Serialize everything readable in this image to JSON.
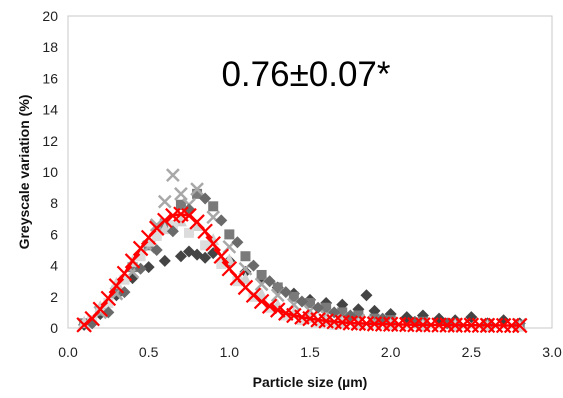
{
  "chart_data": {
    "type": "scatter",
    "title": "",
    "annotation": "0.76±0.07*",
    "xlabel": "Particle size (µm)",
    "ylabel": "Greyscale variation (%)",
    "xlim": [
      0.0,
      3.0
    ],
    "ylim": [
      0,
      20
    ],
    "xticks": [
      "0.0",
      "0.5",
      "1.0",
      "1.5",
      "2.0",
      "2.5",
      "3.0"
    ],
    "yticks": [
      "0",
      "2",
      "4",
      "6",
      "8",
      "10",
      "12",
      "14",
      "16",
      "18",
      "20"
    ],
    "grid": false,
    "legend": "none",
    "colors": {
      "mean": "#ff0000",
      "dark": "#444444",
      "medium": "#7a7a7a",
      "light": "#a8a8a8",
      "lightest": "#d2d2d2"
    },
    "series": [
      {
        "marker": "x",
        "color": "#ff0000",
        "x": [
          0.1,
          0.15,
          0.2,
          0.25,
          0.3,
          0.35,
          0.4,
          0.45,
          0.5,
          0.55,
          0.6,
          0.65,
          0.7,
          0.75,
          0.8,
          0.85,
          0.9,
          0.95,
          1.0,
          1.05,
          1.1,
          1.15,
          1.2,
          1.25,
          1.3,
          1.35,
          1.4,
          1.45,
          1.5,
          1.55,
          1.6,
          1.65,
          1.7,
          1.75,
          1.8,
          1.85,
          1.9,
          1.95,
          2.0,
          2.05,
          2.1,
          2.15,
          2.2,
          2.25,
          2.3,
          2.35,
          2.4,
          2.45,
          2.5,
          2.55,
          2.6,
          2.65,
          2.7,
          2.75,
          2.8
        ],
        "y": [
          0.2,
          0.6,
          1.2,
          1.9,
          2.7,
          3.5,
          4.3,
          5.1,
          5.8,
          6.4,
          6.9,
          7.2,
          7.3,
          7.2,
          6.8,
          6.2,
          5.4,
          4.6,
          3.8,
          3.2,
          2.6,
          2.1,
          1.7,
          1.4,
          1.15,
          0.95,
          0.8,
          0.7,
          0.6,
          0.52,
          0.45,
          0.4,
          0.36,
          0.32,
          0.3,
          0.28,
          0.26,
          0.25,
          0.24,
          0.23,
          0.22,
          0.21,
          0.2,
          0.2,
          0.19,
          0.19,
          0.18,
          0.18,
          0.18,
          0.17,
          0.17,
          0.17,
          0.16,
          0.16,
          0.16
        ]
      },
      {
        "marker": "diamond",
        "color": "#444444",
        "x": [
          0.1,
          0.2,
          0.3,
          0.4,
          0.5,
          0.6,
          0.7,
          0.75,
          0.8,
          0.85,
          0.9,
          1.0,
          1.1,
          1.2,
          1.3,
          1.4,
          1.5,
          1.6,
          1.7,
          1.8,
          1.85,
          1.9,
          2.0,
          2.1,
          2.2,
          2.3,
          2.4,
          2.5,
          2.6,
          2.7,
          2.8
        ],
        "y": [
          0.2,
          0.9,
          2.1,
          3.2,
          3.9,
          4.3,
          4.6,
          4.9,
          4.7,
          4.5,
          4.8,
          4.3,
          3.6,
          3.1,
          2.6,
          2.2,
          1.8,
          1.6,
          1.5,
          1.2,
          2.1,
          1.1,
          0.9,
          0.7,
          0.8,
          0.6,
          0.5,
          0.7,
          0.3,
          0.5,
          0.3
        ]
      },
      {
        "marker": "square",
        "color": "#7a7a7a",
        "x": [
          0.1,
          0.2,
          0.3,
          0.4,
          0.5,
          0.6,
          0.7,
          0.8,
          0.9,
          1.0,
          1.1,
          1.2,
          1.3,
          1.4,
          1.5,
          1.6,
          1.7,
          1.8,
          1.9,
          2.0,
          2.2,
          2.4,
          2.6,
          2.8
        ],
        "y": [
          0.3,
          1.1,
          2.4,
          3.9,
          5.3,
          6.7,
          7.9,
          8.6,
          7.8,
          6.0,
          4.6,
          3.4,
          2.6,
          2.0,
          1.6,
          1.3,
          1.0,
          0.8,
          0.6,
          0.5,
          0.4,
          0.3,
          0.25,
          0.2
        ]
      },
      {
        "marker": "x",
        "color": "#a8a8a8",
        "x": [
          0.1,
          0.2,
          0.3,
          0.4,
          0.5,
          0.55,
          0.6,
          0.65,
          0.7,
          0.75,
          0.8,
          0.9,
          1.0,
          1.1,
          1.2,
          1.3,
          1.4,
          1.5,
          1.6,
          1.7,
          1.8,
          1.9,
          2.0,
          2.2,
          2.4,
          2.6,
          2.8
        ],
        "y": [
          0.2,
          1.0,
          2.2,
          3.6,
          5.2,
          6.6,
          8.1,
          9.8,
          8.6,
          7.9,
          8.9,
          7.1,
          5.2,
          3.8,
          2.8,
          2.1,
          1.5,
          1.1,
          0.8,
          0.6,
          0.5,
          0.4,
          0.3,
          0.25,
          0.2,
          0.2,
          0.2
        ]
      },
      {
        "marker": "triangle",
        "color": "#d2d2d2",
        "x": [
          0.1,
          0.2,
          0.3,
          0.4,
          0.5,
          0.6,
          0.7,
          0.8,
          0.9,
          1.0,
          1.1,
          1.2,
          1.3,
          1.4,
          1.5,
          1.6,
          1.7,
          1.8,
          2.0,
          2.2,
          2.4,
          2.6,
          2.8
        ],
        "y": [
          0.4,
          1.4,
          2.9,
          4.3,
          5.6,
          6.4,
          6.9,
          6.6,
          5.7,
          4.4,
          3.2,
          2.2,
          1.5,
          1.0,
          0.7,
          0.5,
          0.4,
          0.3,
          0.25,
          0.2,
          0.2,
          0.15,
          0.15
        ]
      },
      {
        "marker": "square",
        "color": "#dcdcdc",
        "x": [
          0.15,
          0.25,
          0.35,
          0.45,
          0.55,
          0.65,
          0.75,
          0.85,
          0.95,
          1.05,
          1.15,
          1.25,
          1.35,
          1.45,
          1.55,
          1.65
        ],
        "y": [
          0.5,
          1.6,
          3.1,
          4.6,
          5.9,
          6.6,
          6.1,
          5.3,
          4.1,
          3.0,
          2.0,
          1.3,
          0.8,
          0.5,
          0.3,
          0.2
        ]
      },
      {
        "marker": "diamond",
        "color": "#6a6a6a",
        "x": [
          0.15,
          0.25,
          0.35,
          0.45,
          0.55,
          0.65,
          0.75,
          0.85,
          0.95,
          1.05,
          1.15,
          1.25,
          1.35,
          1.45,
          1.55,
          1.65,
          1.75,
          1.95,
          2.15,
          2.35
        ],
        "y": [
          0.3,
          1.0,
          2.3,
          3.8,
          5.0,
          6.2,
          7.6,
          8.3,
          6.9,
          5.5,
          4.0,
          3.0,
          2.3,
          1.7,
          1.3,
          1.0,
          0.8,
          0.6,
          0.4,
          0.3
        ]
      }
    ]
  }
}
